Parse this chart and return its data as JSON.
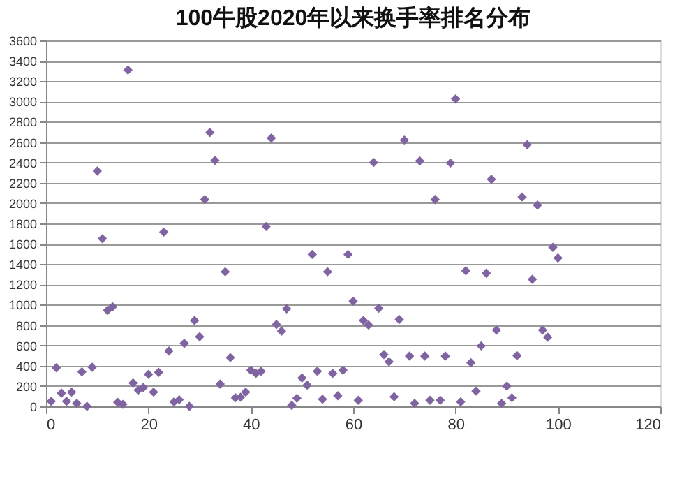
{
  "chart_data": {
    "type": "scatter",
    "title": "100牛股2020年以来换手率排名分布",
    "x": [
      1,
      2,
      3,
      4,
      5,
      6,
      7,
      8,
      9,
      10,
      11,
      12,
      13,
      14,
      15,
      16,
      17,
      18,
      19,
      20,
      21,
      22,
      23,
      24,
      25,
      26,
      27,
      28,
      29,
      30,
      31,
      32,
      33,
      34,
      35,
      36,
      37,
      38,
      39,
      40,
      41,
      42,
      43,
      44,
      45,
      46,
      47,
      48,
      49,
      50,
      51,
      52,
      53,
      54,
      55,
      56,
      57,
      58,
      59,
      60,
      61,
      62,
      63,
      64,
      65,
      66,
      67,
      68,
      69,
      70,
      71,
      72,
      73,
      74,
      75,
      76,
      77,
      78,
      79,
      80,
      81,
      82,
      83,
      84,
      85,
      86,
      87,
      88,
      89,
      90,
      91,
      92,
      93,
      94,
      95,
      96,
      97,
      98,
      99,
      100
    ],
    "series": [
      {
        "color": "#8064a2",
        "values": [
          50,
          380,
          130,
          50,
          140,
          30,
          340,
          0,
          385,
          2315,
          1650,
          945,
          980,
          40,
          20,
          3310,
          230,
          160,
          185,
          315,
          140,
          335,
          1715,
          545,
          45,
          65,
          620,
          0,
          845,
          685,
          2035,
          2695,
          2420,
          220,
          1325,
          480,
          85,
          90,
          140,
          355,
          325,
          345,
          1770,
          2640,
          805,
          740,
          960,
          10,
          80,
          280,
          210,
          1495,
          345,
          70,
          1325,
          325,
          105,
          355,
          1495,
          1035,
          60,
          845,
          800,
          2400,
          965,
          510,
          440,
          95,
          855,
          2620,
          495,
          30,
          2415,
          495,
          60,
          2035,
          60,
          495,
          2395,
          3025,
          45,
          1335,
          430,
          150,
          595,
          1310,
          2235,
          750,
          30,
          200,
          85,
          500,
          2060,
          2575,
          1250,
          1980,
          750,
          680,
          1565,
          1460
        ]
      }
    ],
    "xlim": [
      0,
      120
    ],
    "xticks": [
      0,
      20,
      40,
      60,
      80,
      100,
      120
    ],
    "ylim": [
      0,
      3600
    ],
    "yticks": [
      0,
      200,
      400,
      600,
      800,
      1000,
      1200,
      1400,
      1600,
      1800,
      2000,
      2200,
      2400,
      2600,
      2800,
      3000,
      3200,
      3400,
      3600
    ],
    "grid": "y",
    "marker": "diamond",
    "legend": false
  }
}
